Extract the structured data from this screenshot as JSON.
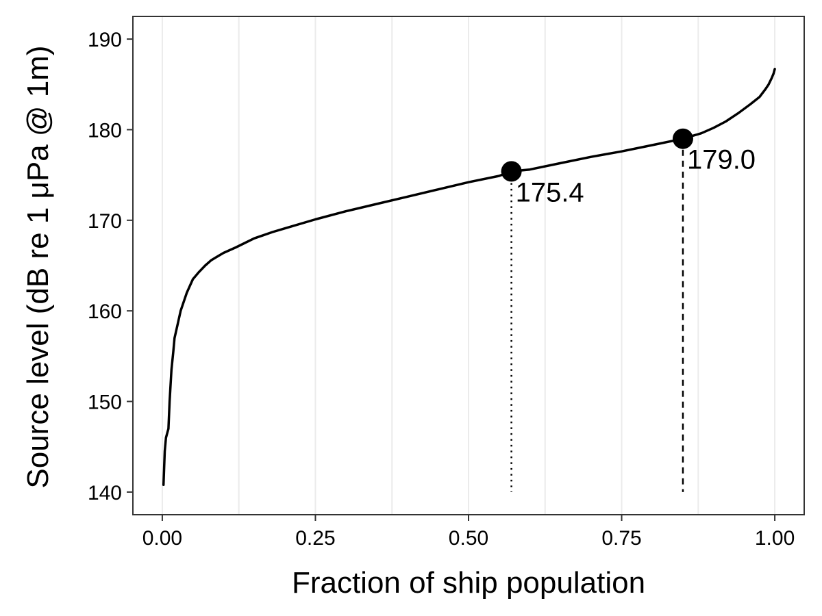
{
  "chart_data": {
    "type": "line",
    "title": "",
    "xlabel": "Fraction of ship population",
    "ylabel": "Source level (dB re 1 μPa @ 1m)",
    "xlim": [
      -0.048,
      1.048
    ],
    "ylim": [
      137.5,
      192.5
    ],
    "x_ticks": [
      0.0,
      0.25,
      0.5,
      0.75,
      1.0
    ],
    "x_tick_labels": [
      "0.00",
      "0.25",
      "0.50",
      "0.75",
      "1.00"
    ],
    "y_ticks": [
      140,
      150,
      160,
      170,
      180,
      190
    ],
    "y_tick_labels": [
      "140",
      "150",
      "160",
      "170",
      "180",
      "190"
    ],
    "grid": "vertical only",
    "legend": "none",
    "series": [
      {
        "x": [
          0.002,
          0.004,
          0.006,
          0.01,
          0.012,
          0.015,
          0.018,
          0.02,
          0.025,
          0.03,
          0.035,
          0.04,
          0.05,
          0.06,
          0.07,
          0.08,
          0.09,
          0.1,
          0.12,
          0.15,
          0.18,
          0.2,
          0.25,
          0.3,
          0.35,
          0.4,
          0.45,
          0.5,
          0.55,
          0.57,
          0.6,
          0.65,
          0.7,
          0.75,
          0.8,
          0.85,
          0.88,
          0.9,
          0.92,
          0.94,
          0.96,
          0.975,
          0.985,
          0.99,
          0.995,
          0.998,
          1.0
        ],
        "y": [
          140.8,
          144.5,
          146.0,
          147.0,
          150.0,
          153.5,
          155.5,
          157.0,
          158.5,
          160.0,
          161.0,
          162.0,
          163.5,
          164.3,
          165.0,
          165.6,
          166.0,
          166.4,
          167.0,
          168.0,
          168.7,
          169.1,
          170.1,
          171.0,
          171.8,
          172.6,
          173.4,
          174.2,
          174.9,
          175.4,
          175.6,
          176.3,
          177.0,
          177.6,
          178.3,
          179.0,
          179.6,
          180.2,
          180.9,
          181.8,
          182.8,
          183.6,
          184.5,
          185.0,
          185.7,
          186.2,
          186.7
        ],
        "color": "#000000"
      }
    ],
    "markers": [
      {
        "x": 0.57,
        "y": 175.4,
        "label": "175.4",
        "line_style": "dotted"
      },
      {
        "x": 0.85,
        "y": 179.0,
        "label": "179.0",
        "line_style": "dashed"
      }
    ],
    "colors": {
      "panel_border": "#333333",
      "grid": "#ebebeb",
      "line": "#000000"
    }
  }
}
